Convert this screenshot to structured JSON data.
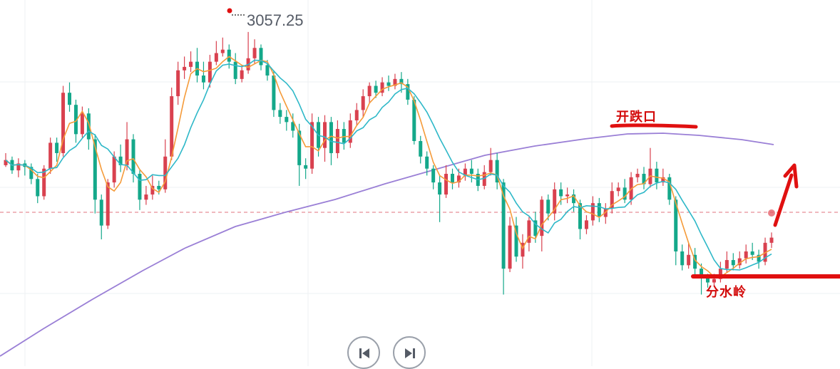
{
  "chart_data": {
    "type": "candlestick",
    "title": "",
    "xlabel": "",
    "ylabel": "",
    "grid": true,
    "ylim": [
      2880,
      3070
    ],
    "peak_label": "3057.25",
    "reference_level": 2940,
    "candles": [
      [
        2980,
        2983,
        2987,
        2979
      ],
      [
        2983,
        2977,
        2985,
        2975
      ],
      [
        2977,
        2981,
        2984,
        2973
      ],
      [
        2981,
        2979,
        2983,
        2974
      ],
      [
        2979,
        2972,
        2981,
        2969
      ],
      [
        2972,
        2962,
        2975,
        2958
      ],
      [
        2962,
        2978,
        2980,
        2960
      ],
      [
        2978,
        2993,
        2996,
        2975
      ],
      [
        2993,
        2987,
        2996,
        2982
      ],
      [
        2987,
        3022,
        3026,
        2985
      ],
      [
        3022,
        3015,
        3028,
        3011
      ],
      [
        3015,
        2998,
        3018,
        2993
      ],
      [
        2998,
        3010,
        3014,
        2996
      ],
      [
        3010,
        2995,
        3013,
        2989
      ],
      [
        2995,
        2960,
        2998,
        2952
      ],
      [
        2960,
        2945,
        2963,
        2937
      ],
      [
        2945,
        2970,
        2972,
        2943
      ],
      [
        2970,
        2985,
        2988,
        2967
      ],
      [
        2985,
        2980,
        2992,
        2976
      ],
      [
        2980,
        2995,
        3005,
        2977
      ],
      [
        2995,
        2975,
        2998,
        2970
      ],
      [
        2975,
        2960,
        2977,
        2954
      ],
      [
        2960,
        2963,
        2968,
        2957
      ],
      [
        2963,
        2968,
        2974,
        2960
      ],
      [
        2968,
        2966,
        2971,
        2963
      ],
      [
        2966,
        2985,
        2995,
        2964
      ],
      [
        2985,
        3020,
        3025,
        2983
      ],
      [
        3020,
        3035,
        3040,
        3015
      ],
      [
        3035,
        3037,
        3043,
        3030
      ],
      [
        3037,
        3040,
        3046,
        3034
      ],
      [
        3040,
        3032,
        3048,
        3028
      ],
      [
        3032,
        3028,
        3040,
        3024
      ],
      [
        3028,
        3040,
        3044,
        3025
      ],
      [
        3040,
        3045,
        3052,
        3038
      ],
      [
        3045,
        3047,
        3054,
        3043
      ],
      [
        3047,
        3040,
        3050,
        3036
      ],
      [
        3040,
        3030,
        3045,
        3027
      ],
      [
        3030,
        3035,
        3038,
        3028
      ],
      [
        3035,
        3042,
        3057.25,
        3033
      ],
      [
        3042,
        3048,
        3053,
        3039
      ],
      [
        3048,
        3038,
        3050,
        3035
      ],
      [
        3038,
        3032,
        3041,
        3029
      ],
      [
        3032,
        3012,
        3035,
        3008
      ],
      [
        3012,
        3008,
        3016,
        3004
      ],
      [
        3008,
        3005,
        3012,
        3000
      ],
      [
        3005,
        3000,
        3010,
        2996
      ],
      [
        3000,
        2980,
        3004,
        2968
      ],
      [
        2980,
        2978,
        2984,
        2972
      ],
      [
        2978,
        3005,
        3010,
        2975
      ],
      [
        3005,
        2990,
        3008,
        2985
      ],
      [
        2990,
        3005,
        3009,
        2982
      ],
      [
        3005,
        2987,
        3008,
        2980
      ],
      [
        2987,
        3001,
        3006,
        2984
      ],
      [
        3001,
        2993,
        3005,
        2989
      ],
      [
        2993,
        3006,
        3010,
        2990
      ],
      [
        3006,
        3012,
        3016,
        3003
      ],
      [
        3012,
        3020,
        3024,
        3008
      ],
      [
        3020,
        3026,
        3028,
        3016
      ],
      [
        3026,
        3022,
        3029,
        3019
      ],
      [
        3022,
        3028,
        3031,
        3020
      ],
      [
        3028,
        3026,
        3032,
        3023
      ],
      [
        3026,
        3030,
        3033,
        3024
      ],
      [
        3030,
        3027,
        3034,
        3022
      ],
      [
        3027,
        3018,
        3030,
        3015
      ],
      [
        3018,
        2994,
        3020,
        2992
      ],
      [
        2994,
        2985,
        2997,
        2981
      ],
      [
        2985,
        2978,
        2988,
        2974
      ],
      [
        2978,
        2970,
        2980,
        2966
      ],
      [
        2970,
        2963,
        2974,
        2947
      ],
      [
        2963,
        2975,
        2980,
        2961
      ],
      [
        2975,
        2970,
        2978,
        2966
      ],
      [
        2970,
        2974,
        2978,
        2967
      ],
      [
        2974,
        2978,
        2981,
        2971
      ],
      [
        2978,
        2975,
        2983,
        2970
      ],
      [
        2975,
        2968,
        2978,
        2965
      ],
      [
        2968,
        2976,
        2980,
        2966
      ],
      [
        2976,
        2983,
        2990,
        2974
      ],
      [
        2983,
        2970,
        2987,
        2966
      ],
      [
        2970,
        2920,
        2972,
        2905
      ],
      [
        2920,
        2945,
        2950,
        2918
      ],
      [
        2945,
        2927,
        2950,
        2924
      ],
      [
        2927,
        2935,
        2940,
        2920
      ],
      [
        2935,
        2948,
        2950,
        2930
      ],
      [
        2948,
        2939,
        2953,
        2935
      ],
      [
        2939,
        2960,
        2962,
        2930
      ],
      [
        2960,
        2952,
        2963,
        2948
      ],
      [
        2952,
        2966,
        2970,
        2948
      ],
      [
        2966,
        2962,
        2970,
        2957
      ],
      [
        2962,
        2963,
        2967,
        2958
      ],
      [
        2963,
        2958,
        2966,
        2953
      ],
      [
        2958,
        2943,
        2960,
        2937
      ],
      [
        2943,
        2948,
        2951,
        2940
      ],
      [
        2948,
        2958,
        2962,
        2945
      ],
      [
        2958,
        2950,
        2961,
        2947
      ],
      [
        2950,
        2955,
        2958,
        2946
      ],
      [
        2955,
        2965,
        2970,
        2952
      ],
      [
        2965,
        2967,
        2970,
        2962
      ],
      [
        2967,
        2960,
        2972,
        2958
      ],
      [
        2960,
        2973,
        2976,
        2957
      ],
      [
        2973,
        2975,
        2978,
        2970
      ],
      [
        2975,
        2969,
        2979,
        2966
      ],
      [
        2969,
        2978,
        2990,
        2967
      ],
      [
        2978,
        2970,
        2982,
        2966
      ],
      [
        2970,
        2973,
        2978,
        2968
      ],
      [
        2973,
        2960,
        2975,
        2957
      ],
      [
        2960,
        2930,
        2962,
        2922
      ],
      [
        2930,
        2922,
        2934,
        2919
      ],
      [
        2922,
        2928,
        2935,
        2920
      ],
      [
        2928,
        2920,
        2932,
        2915
      ],
      [
        2920,
        2915,
        2923,
        2905
      ],
      [
        2915,
        2912,
        2917,
        2909
      ],
      [
        2912,
        2914,
        2917,
        2910
      ],
      [
        2914,
        2920,
        2924,
        2912
      ],
      [
        2920,
        2925,
        2930,
        2918
      ],
      [
        2925,
        2922,
        2929,
        2919
      ],
      [
        2922,
        2926,
        2930,
        2920
      ],
      [
        2926,
        2930,
        2934,
        2923
      ],
      [
        2930,
        2928,
        2935,
        2925
      ],
      [
        2928,
        2924,
        2931,
        2920
      ],
      [
        2924,
        2935,
        2938,
        2922
      ],
      [
        2935,
        2938,
        2941,
        2932
      ]
    ]
  },
  "annotations": {
    "top_label": "开跌口",
    "bottom_label": "分水岭"
  },
  "colors": {
    "up": "#d9414f",
    "down": "#14a88a",
    "ma_fast": "#f59b3a",
    "ma_slow": "#2eb8c8",
    "ma_long": "#9a7fd6",
    "annotation": "#d30a0a"
  },
  "controls": {
    "prev_icon": "skip-back-icon",
    "next_icon": "skip-forward-icon"
  }
}
